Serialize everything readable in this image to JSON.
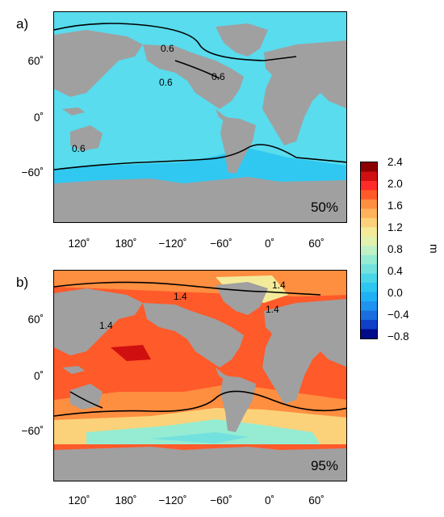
{
  "colorbar": {
    "ticks": [
      "2.4",
      "2.0",
      "1.6",
      "1.2",
      "0.8",
      "0.4",
      "0.0",
      "−0.4",
      "−0.8"
    ],
    "unit": "m",
    "colors": [
      "#8b0000",
      "#d01010",
      "#ff2a2a",
      "#ff5a2a",
      "#fe8e40",
      "#ffb25a",
      "#fbd27a",
      "#f3eb9a",
      "#e2f1ae",
      "#bff1c6",
      "#95ecd2",
      "#73e1de",
      "#4ad5e8",
      "#2cc6f2",
      "#20b0f5",
      "#1e93f0",
      "#1a6ee0",
      "#1040c8",
      "#000a8a"
    ]
  },
  "map_a": {
    "panel_label": "a)",
    "percentile": "50%",
    "lat_ticks": [
      "60˚",
      "0˚",
      "−60˚"
    ],
    "contour_labels": [
      "0.6",
      "0.6",
      "0.6",
      "0.6"
    ],
    "ocean_color": "#58dcee",
    "land_color": "#a0a0a0"
  },
  "map_b": {
    "panel_label": "b)",
    "percentile": "95%",
    "lat_ticks": [
      "60˚",
      "0˚",
      "−60˚"
    ],
    "contour_labels": [
      "1.4",
      "1.4",
      "1.4",
      "1.4"
    ],
    "ocean_color": "#ff5a2a",
    "land_color": "#a0a0a0"
  },
  "lon_ticks": [
    "120˚",
    "180˚",
    "−120˚",
    "−60˚",
    "0˚",
    "60˚"
  ]
}
